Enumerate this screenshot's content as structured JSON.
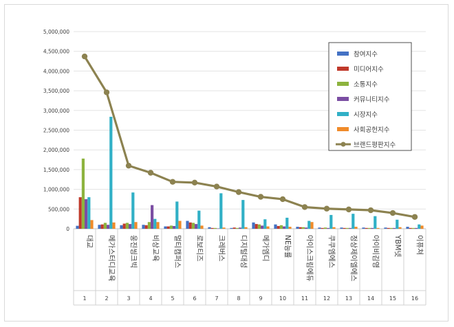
{
  "chart_data": {
    "type": "bar",
    "title": "",
    "xlabel": "",
    "ylabel": "",
    "ylim": [
      0,
      5000000
    ],
    "y_ticks": [
      "0",
      "500,000",
      "1,000,000",
      "1,500,000",
      "2,000,000",
      "2,500,000",
      "3,000,000",
      "3,500,000",
      "4,000,000",
      "4,500,000",
      "5,000,000"
    ],
    "categories": [
      "대교",
      "메가스터디교육",
      "웅진씽크빅",
      "비상교육",
      "멀티캠퍼스",
      "로보티즈",
      "크레버스",
      "디지털대성",
      "메가엠디",
      "NE능률",
      "아이스크림에듀",
      "쿠쿠엠에스",
      "정상제이엘에스",
      "아이비김영",
      "YBM넷",
      "이퓨쳐"
    ],
    "ranks": [
      "1",
      "2",
      "3",
      "4",
      "5",
      "6",
      "7",
      "8",
      "9",
      "10",
      "11",
      "12",
      "13",
      "14",
      "15",
      "16"
    ],
    "legend_position": "top-right",
    "series": [
      {
        "name": "참여지수",
        "color": "#4472c4",
        "kind": "bar",
        "values": [
          75000,
          100000,
          90000,
          100000,
          60000,
          200000,
          40000,
          20000,
          160000,
          110000,
          50000,
          30000,
          30000,
          30000,
          30000,
          50000
        ]
      },
      {
        "name": "미디어지수",
        "color": "#c0392b",
        "kind": "bar",
        "values": [
          800000,
          110000,
          130000,
          90000,
          60000,
          160000,
          20000,
          30000,
          120000,
          70000,
          40000,
          20000,
          20000,
          20000,
          20000,
          20000
        ]
      },
      {
        "name": "소통지수",
        "color": "#8db33e",
        "kind": "bar",
        "values": [
          1780000,
          150000,
          150000,
          170000,
          80000,
          150000,
          20000,
          20000,
          110000,
          90000,
          40000,
          30000,
          20000,
          20000,
          20000,
          20000
        ]
      },
      {
        "name": "커뮤니티지수",
        "color": "#7b4ea3",
        "kind": "bar",
        "values": [
          750000,
          100000,
          120000,
          600000,
          70000,
          120000,
          10000,
          30000,
          80000,
          60000,
          30000,
          20000,
          20000,
          20000,
          20000,
          20000
        ]
      },
      {
        "name": "시장지수",
        "color": "#31b0c6",
        "kind": "bar",
        "values": [
          800000,
          2840000,
          920000,
          250000,
          690000,
          460000,
          900000,
          730000,
          240000,
          280000,
          200000,
          350000,
          380000,
          320000,
          230000,
          110000
        ]
      },
      {
        "name": "사회공헌지수",
        "color": "#f08b2a",
        "kind": "bar",
        "values": [
          220000,
          160000,
          170000,
          170000,
          200000,
          80000,
          30000,
          40000,
          60000,
          50000,
          170000,
          40000,
          50000,
          20000,
          40000,
          80000
        ]
      },
      {
        "name": "브랜드평판지수",
        "color": "#8c8250",
        "kind": "line",
        "values": [
          4370000,
          3460000,
          1600000,
          1420000,
          1190000,
          1170000,
          1070000,
          930000,
          810000,
          750000,
          550000,
          510000,
          490000,
          470000,
          400000,
          300000
        ]
      }
    ]
  }
}
